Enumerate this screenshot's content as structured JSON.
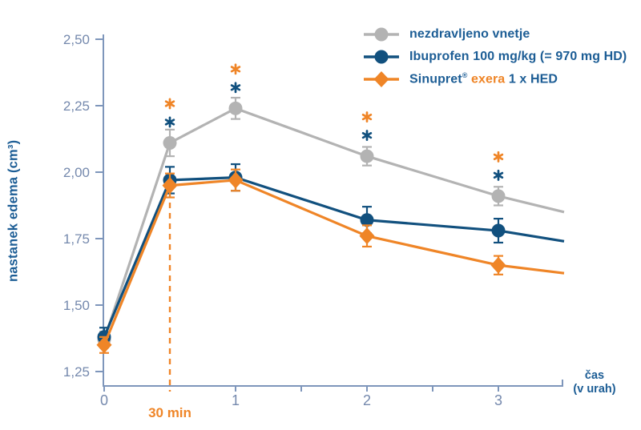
{
  "colors": {
    "blue_text": "#1c5d95",
    "orange": "#ef8527",
    "navy": "#11507e",
    "gray": "#b3b3b3",
    "axis": "#7e96bb",
    "tick_label": "#7589ad"
  },
  "legend": {
    "items": [
      {
        "label": "nezdravljeno vnetje"
      },
      {
        "label": "Ibuprofen 100 mg/kg (= 970 mg HD)"
      },
      {
        "parts": [
          {
            "text": "Sinupret"
          },
          {
            "text": "®"
          },
          {
            "text": "exera"
          },
          {
            "text": "1 x HED"
          }
        ]
      }
    ]
  },
  "chart_data": {
    "type": "line",
    "title": "",
    "ylabel": "nastanek edema (cm³)",
    "xlabel": {
      "line1": "čas",
      "line2": "(v urah)"
    },
    "ylim": [
      1.25,
      2.5
    ],
    "xlim": [
      0,
      3.5
    ],
    "grid": false,
    "legend_position": "top-right",
    "y_ticks": [
      {
        "value": 2.5,
        "label": "2,50"
      },
      {
        "value": 2.25,
        "label": "2,25"
      },
      {
        "value": 2.0,
        "label": "2,00"
      },
      {
        "value": 1.75,
        "label": "1,75"
      },
      {
        "value": 1.5,
        "label": "1,50"
      },
      {
        "value": 1.25,
        "label": "1,25"
      }
    ],
    "x_major_ticks": [
      {
        "value": 0,
        "label": "0"
      },
      {
        "value": 1,
        "label": "1"
      },
      {
        "value": 2,
        "label": "2"
      },
      {
        "value": 3,
        "label": "3"
      }
    ],
    "x_minor_ticks": [
      1.5,
      2.5
    ],
    "annotation": {
      "x": 0.5,
      "label": "30 min",
      "style": "dashed-vertical-line"
    },
    "series": [
      {
        "name": "nezdravljeno vnetje",
        "color": "#b3b3b3",
        "marker": "circle",
        "x": [
          0,
          0.5,
          1,
          2,
          3
        ],
        "y": [
          1.37,
          2.11,
          2.24,
          2.06,
          1.91
        ],
        "err": [
          0.03,
          0.05,
          0.04,
          0.035,
          0.035
        ],
        "tail": {
          "x": 3.5,
          "y": 1.85
        }
      },
      {
        "name": "Ibuprofen 100 mg/kg (= 970 mg HD)",
        "color": "#11507e",
        "marker": "circle",
        "x": [
          0,
          0.5,
          1,
          2,
          3
        ],
        "y": [
          1.38,
          1.97,
          1.98,
          1.82,
          1.78
        ],
        "err": [
          0.035,
          0.05,
          0.05,
          0.05,
          0.045
        ],
        "tail": {
          "x": 3.5,
          "y": 1.74
        }
      },
      {
        "name": "Sinupret® exera 1 x HED",
        "color": "#ef8527",
        "marker": "diamond",
        "x": [
          0,
          0.5,
          1,
          2,
          3
        ],
        "y": [
          1.35,
          1.95,
          1.97,
          1.76,
          1.65
        ],
        "err": [
          0.03,
          0.045,
          0.04,
          0.04,
          0.035
        ],
        "tail": {
          "x": 3.5,
          "y": 1.62
        }
      }
    ],
    "significance_x": [
      0.5,
      1,
      2,
      3
    ]
  }
}
